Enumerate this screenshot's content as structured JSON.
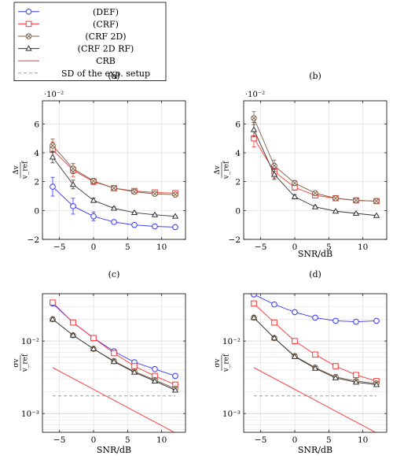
{
  "legend": {
    "entries": [
      {
        "label": "(DEF)",
        "color": "#3333ff",
        "marker": "circle",
        "dash": "none"
      },
      {
        "label": "(CRF)",
        "color": "#ff3333",
        "marker": "square",
        "dash": "none"
      },
      {
        "label": "(CRF 2D)",
        "color": "#7a5c40",
        "marker": "otimes",
        "dash": "none"
      },
      {
        "label": "(CRF 2D RF)",
        "color": "#333333",
        "marker": "triangle",
        "dash": "none"
      },
      {
        "label": "CRB",
        "color": "#ff3333",
        "marker": "none",
        "dash": "none"
      },
      {
        "label": "SD of the exp. setup",
        "color": "#999999",
        "marker": "none",
        "dash": "dashed"
      }
    ]
  },
  "chart_data": [
    {
      "id": "a",
      "type": "line",
      "title": "(a)",
      "xlabel": "",
      "ylabel_num": "Δv",
      "ylabel_den": "v_ref",
      "exponent_label": "·10⁻²",
      "xlim": [
        -7.5,
        13.5
      ],
      "ylim": [
        -2,
        7.6
      ],
      "yscale": "linear",
      "xticks": [
        -5,
        0,
        5,
        10
      ],
      "yticks": [
        -2,
        0,
        2,
        4,
        6
      ],
      "series": [
        {
          "legend_index": 0,
          "x": [
            -6,
            -3,
            0,
            3,
            6,
            9,
            12
          ],
          "y": [
            1.65,
            0.3,
            -0.4,
            -0.8,
            -1.0,
            -1.1,
            -1.15
          ],
          "err": [
            0.65,
            0.55,
            0.3,
            0.15,
            0.08,
            0.06,
            0.05
          ]
        },
        {
          "legend_index": 1,
          "x": [
            -6,
            -3,
            0,
            3,
            6,
            9,
            12
          ],
          "y": [
            4.2,
            2.8,
            2.0,
            1.55,
            1.35,
            1.25,
            1.2
          ],
          "err": [
            0.55,
            0.45,
            0.2,
            0.12,
            0.08,
            0.06,
            0.05
          ]
        },
        {
          "legend_index": 2,
          "x": [
            -6,
            -3,
            0,
            3,
            6,
            9,
            12
          ],
          "y": [
            4.5,
            2.9,
            2.05,
            1.55,
            1.3,
            1.15,
            1.1
          ],
          "err": [
            0.45,
            0.35,
            0.18,
            0.12,
            0.08,
            0.06,
            0.05
          ]
        },
        {
          "legend_index": 3,
          "x": [
            -6,
            -3,
            0,
            3,
            6,
            9,
            12
          ],
          "y": [
            3.7,
            1.8,
            0.7,
            0.15,
            -0.15,
            -0.3,
            -0.4
          ],
          "err": [
            0.4,
            0.3,
            0.15,
            0.1,
            0.06,
            0.05,
            0.04
          ]
        }
      ]
    },
    {
      "id": "b",
      "type": "line",
      "title": "(b)",
      "xlabel": "SNR/dB",
      "ylabel_num": "Δv",
      "ylabel_den": "v_ref",
      "exponent_label": "·10⁻²",
      "xlim": [
        -7.5,
        13.5
      ],
      "ylim": [
        -2,
        7.6
      ],
      "yscale": "linear",
      "xticks": [
        -5,
        0,
        5,
        10
      ],
      "yticks": [
        -2,
        0,
        2,
        4,
        6
      ],
      "series": [
        {
          "legend_index": 1,
          "x": [
            -6,
            -3,
            0,
            3,
            6,
            9,
            12
          ],
          "y": [
            5.0,
            2.7,
            1.6,
            1.05,
            0.85,
            0.7,
            0.65
          ],
          "err": [
            0.6,
            0.45,
            0.2,
            0.12,
            0.08,
            0.06,
            0.05
          ]
        },
        {
          "legend_index": 2,
          "x": [
            -6,
            -3,
            0,
            3,
            6,
            9,
            12
          ],
          "y": [
            6.4,
            3.1,
            1.9,
            1.2,
            0.85,
            0.7,
            0.65
          ],
          "err": [
            0.45,
            0.4,
            0.18,
            0.12,
            0.08,
            0.06,
            0.05
          ]
        },
        {
          "legend_index": 3,
          "x": [
            -6,
            -3,
            0,
            3,
            6,
            9,
            12
          ],
          "y": [
            5.6,
            2.5,
            0.95,
            0.25,
            -0.05,
            -0.2,
            -0.35
          ],
          "err": [
            0.5,
            0.35,
            0.15,
            0.1,
            0.06,
            0.05,
            0.04
          ]
        }
      ]
    },
    {
      "id": "c",
      "type": "line",
      "title": "(c)",
      "xlabel": "SNR/dB",
      "ylabel_num": "σv",
      "ylabel_den": "v_ref",
      "xlim": [
        -7.5,
        13.5
      ],
      "ylim": [
        0.00055,
        0.045
      ],
      "yscale": "log",
      "xticks": [
        -5,
        0,
        5,
        10
      ],
      "yticks": [
        0.001,
        0.01
      ],
      "ytick_labels": [
        "10⁻³",
        "10⁻²"
      ],
      "series": [
        {
          "legend_index": 0,
          "x": [
            -6,
            -3,
            0,
            3,
            6,
            9,
            12
          ],
          "y": [
            0.033,
            0.018,
            0.011,
            0.0072,
            0.0051,
            0.0041,
            0.0033
          ]
        },
        {
          "legend_index": 1,
          "x": [
            -6,
            -3,
            0,
            3,
            6,
            9,
            12
          ],
          "y": [
            0.034,
            0.018,
            0.011,
            0.0068,
            0.0045,
            0.0033,
            0.0025
          ]
        },
        {
          "legend_index": 2,
          "x": [
            -6,
            -3,
            0,
            3,
            6,
            9,
            12
          ],
          "y": [
            0.02,
            0.012,
            0.0078,
            0.0053,
            0.0038,
            0.0029,
            0.0022
          ]
        },
        {
          "legend_index": 3,
          "x": [
            -6,
            -3,
            0,
            3,
            6,
            9,
            12
          ],
          "y": [
            0.02,
            0.012,
            0.0078,
            0.0052,
            0.0037,
            0.0028,
            0.0021
          ]
        },
        {
          "legend_index": 4,
          "x": [
            -6,
            12
          ],
          "y": [
            0.0043,
            0.00054
          ]
        },
        {
          "legend_index": 5,
          "x": [
            -6,
            12
          ],
          "y": [
            0.00175,
            0.00175
          ]
        }
      ]
    },
    {
      "id": "d",
      "type": "line",
      "title": "(d)",
      "xlabel": "SNR/dB",
      "ylabel_num": "σv",
      "ylabel_den": "v_ref",
      "xlim": [
        -7.5,
        13.5
      ],
      "ylim": [
        0.00055,
        0.045
      ],
      "yscale": "log",
      "xticks": [
        -5,
        0,
        5,
        10
      ],
      "yticks": [
        0.001,
        0.01
      ],
      "ytick_labels": [
        "10⁻³",
        "10⁻²"
      ],
      "series": [
        {
          "legend_index": 0,
          "x": [
            -6,
            -3,
            0,
            3,
            6,
            9,
            12
          ],
          "y": [
            0.044,
            0.032,
            0.025,
            0.021,
            0.019,
            0.0185,
            0.019
          ]
        },
        {
          "legend_index": 1,
          "x": [
            -6,
            -3,
            0,
            3,
            6,
            9,
            12
          ],
          "y": [
            0.033,
            0.018,
            0.01,
            0.0065,
            0.0045,
            0.0034,
            0.0028
          ]
        },
        {
          "legend_index": 2,
          "x": [
            -6,
            -3,
            0,
            3,
            6,
            9,
            12
          ],
          "y": [
            0.021,
            0.011,
            0.0062,
            0.0043,
            0.0032,
            0.0028,
            0.0026
          ]
        },
        {
          "legend_index": 3,
          "x": [
            -6,
            -3,
            0,
            3,
            6,
            9,
            12
          ],
          "y": [
            0.021,
            0.011,
            0.0061,
            0.0042,
            0.0031,
            0.0027,
            0.0025
          ]
        },
        {
          "legend_index": 4,
          "x": [
            -6,
            12
          ],
          "y": [
            0.0043,
            0.00054
          ]
        },
        {
          "legend_index": 5,
          "x": [
            -6,
            12
          ],
          "y": [
            0.00175,
            0.00175
          ]
        }
      ]
    }
  ]
}
